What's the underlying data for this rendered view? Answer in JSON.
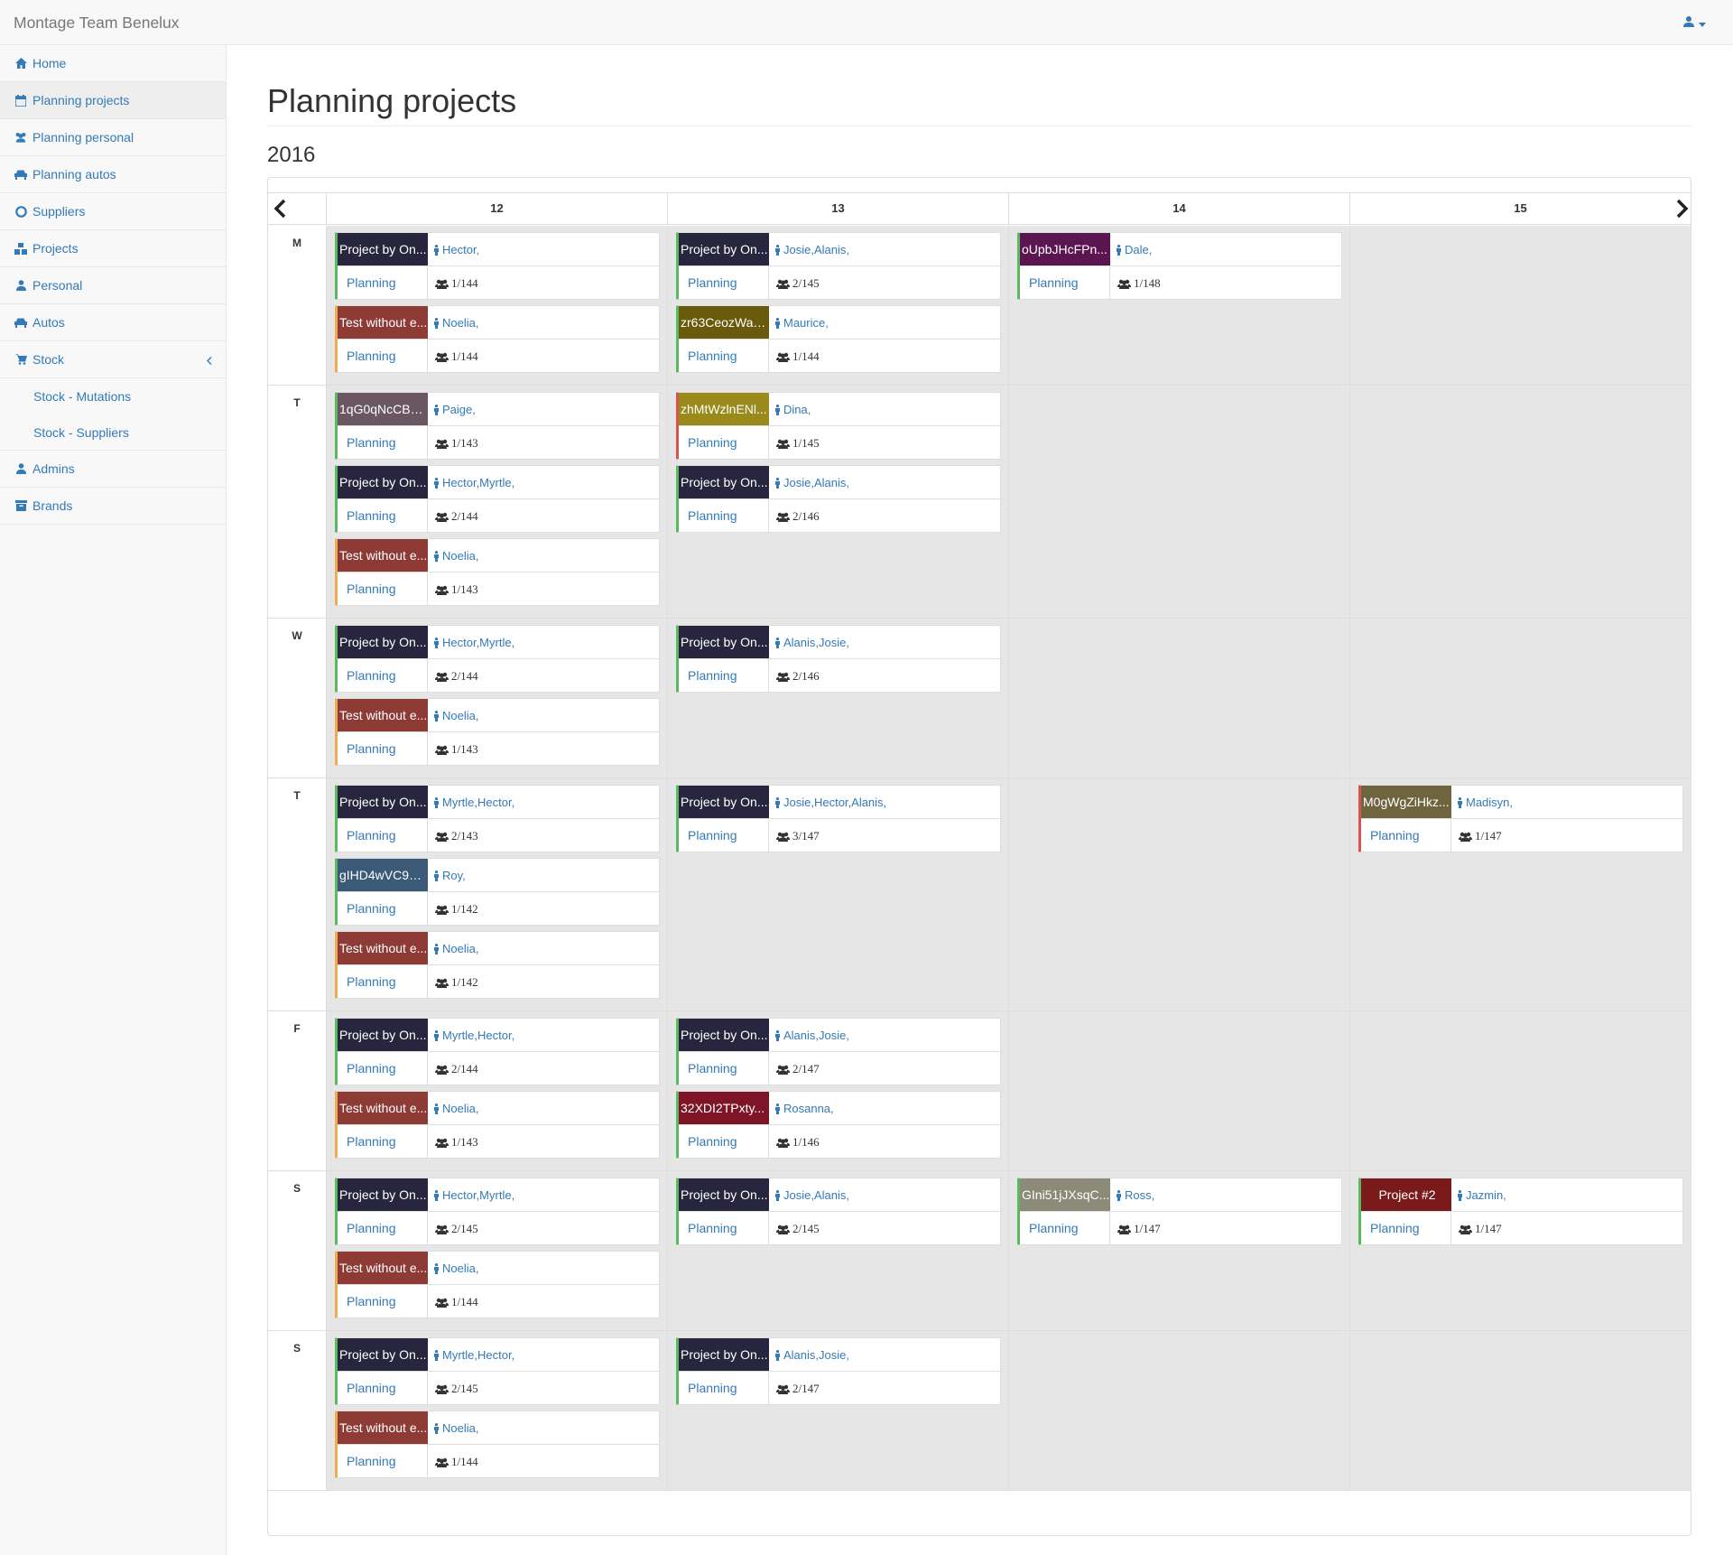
{
  "app": {
    "brand": "Montage Team Benelux"
  },
  "sidebar": {
    "items": [
      {
        "label": "Home",
        "icon": "home-icon"
      },
      {
        "label": "Planning projects",
        "icon": "calendar-icon",
        "active": true
      },
      {
        "label": "Planning personal",
        "icon": "users-icon"
      },
      {
        "label": "Planning autos",
        "icon": "car-icon"
      },
      {
        "label": "Suppliers",
        "icon": "life-ring-icon"
      },
      {
        "label": "Projects",
        "icon": "cubes-icon"
      },
      {
        "label": "Personal",
        "icon": "user-icon"
      },
      {
        "label": "Autos",
        "icon": "car-icon"
      },
      {
        "label": "Stock",
        "icon": "cart-icon",
        "expanded": true
      },
      {
        "label": "Admins",
        "icon": "user-icon"
      },
      {
        "label": "Brands",
        "icon": "archive-icon"
      }
    ],
    "stock_sub": [
      "Stock - Mutations",
      "Stock - Suppliers"
    ]
  },
  "main": {
    "title": "Planning projects",
    "year": "2016"
  },
  "calendar": {
    "weeks": [
      "12",
      "13",
      "14",
      "15"
    ],
    "days": [
      {
        "label": "M",
        "weeks": [
          [
            {
              "name": "Project by On...",
              "color": "#28263f",
              "bar": "#5cb85c",
              "people": "Hector,",
              "count": "1/144"
            },
            {
              "name": "Test without e...",
              "color": "#8e3b35",
              "bar": "#f0ad4e",
              "people": "Noelia,",
              "count": "1/144"
            }
          ],
          [
            {
              "name": "Project by On...",
              "color": "#28263f",
              "bar": "#5cb85c",
              "people": "Josie,Alanis,",
              "count": "2/145"
            },
            {
              "name": "zr63CeozWaJ...",
              "color": "#6a5a0c",
              "bar": "#5cb85c",
              "people": "Maurice,",
              "count": "1/144"
            }
          ],
          [
            {
              "name": "oUpbJHcFPn...",
              "color": "#5b1550",
              "bar": "#5cb85c",
              "people": "Dale,",
              "count": "1/148"
            }
          ],
          []
        ]
      },
      {
        "label": "T",
        "weeks": [
          [
            {
              "name": "1qG0qNcCBa...",
              "color": "#6b5762",
              "bar": "#5cb85c",
              "people": "Paige,",
              "count": "1/143"
            },
            {
              "name": "Project by On...",
              "color": "#28263f",
              "bar": "#5cb85c",
              "people": "Hector,Myrtle,",
              "count": "2/144"
            },
            {
              "name": "Test without e...",
              "color": "#8e3b35",
              "bar": "#f0ad4e",
              "people": "Noelia,",
              "count": "1/143"
            }
          ],
          [
            {
              "name": "zhMtWzlnENl...",
              "color": "#9a8a1c",
              "bar": "#d9534f",
              "people": "Dina,",
              "count": "1/145"
            },
            {
              "name": "Project by On...",
              "color": "#28263f",
              "bar": "#5cb85c",
              "people": "Josie,Alanis,",
              "count": "2/146"
            }
          ],
          [],
          []
        ]
      },
      {
        "label": "W",
        "weeks": [
          [
            {
              "name": "Project by On...",
              "color": "#28263f",
              "bar": "#5cb85c",
              "people": "Hector,Myrtle,",
              "count": "2/144"
            },
            {
              "name": "Test without e...",
              "color": "#8e3b35",
              "bar": "#f0ad4e",
              "people": "Noelia,",
              "count": "1/143"
            }
          ],
          [
            {
              "name": "Project by On...",
              "color": "#28263f",
              "bar": "#5cb85c",
              "people": "Alanis,Josie,",
              "count": "2/146"
            }
          ],
          [],
          []
        ]
      },
      {
        "label": "T",
        "weeks": [
          [
            {
              "name": "Project by On...",
              "color": "#28263f",
              "bar": "#5cb85c",
              "people": "Myrtle,Hector,",
              "count": "2/143"
            },
            {
              "name": "gIHD4wVC9G...",
              "color": "#3a5a78",
              "bar": "#5cb85c",
              "people": "Roy,",
              "count": "1/142"
            },
            {
              "name": "Test without e...",
              "color": "#8e3b35",
              "bar": "#f0ad4e",
              "people": "Noelia,",
              "count": "1/142"
            }
          ],
          [
            {
              "name": "Project by On...",
              "color": "#28263f",
              "bar": "#5cb85c",
              "people": "Josie,Hector,Alanis,",
              "count": "3/147"
            }
          ],
          [],
          [
            {
              "name": "M0gWgZiHkz...",
              "color": "#6e6540",
              "bar": "#d9534f",
              "people": "Madisyn,",
              "count": "1/147"
            }
          ]
        ]
      },
      {
        "label": "F",
        "weeks": [
          [
            {
              "name": "Project by On...",
              "color": "#28263f",
              "bar": "#5cb85c",
              "people": "Myrtle,Hector,",
              "count": "2/144"
            },
            {
              "name": "Test without e...",
              "color": "#8e3b35",
              "bar": "#f0ad4e",
              "people": "Noelia,",
              "count": "1/143"
            }
          ],
          [
            {
              "name": "Project by On...",
              "color": "#28263f",
              "bar": "#5cb85c",
              "people": "Alanis,Josie,",
              "count": "2/147"
            },
            {
              "name": "32XDI2TPxty...",
              "color": "#7e1526",
              "bar": "#5cb85c",
              "people": "Rosanna,",
              "count": "1/146"
            }
          ],
          [],
          []
        ]
      },
      {
        "label": "S",
        "weeks": [
          [
            {
              "name": "Project by On...",
              "color": "#28263f",
              "bar": "#5cb85c",
              "people": "Hector,Myrtle,",
              "count": "2/145"
            },
            {
              "name": "Test without e...",
              "color": "#8e3b35",
              "bar": "#f0ad4e",
              "people": "Noelia,",
              "count": "1/144"
            }
          ],
          [
            {
              "name": "Project by On...",
              "color": "#28263f",
              "bar": "#5cb85c",
              "people": "Josie,Alanis,",
              "count": "2/145"
            }
          ],
          [
            {
              "name": "GIni51jJXsqC...",
              "color": "#8c8a78",
              "bar": "#5cb85c",
              "people": "Ross,",
              "count": "1/147"
            }
          ],
          [
            {
              "name": "Project #2",
              "color": "#7b1a1a",
              "bar": "#5cb85c",
              "people": "Jazmin,",
              "count": "1/147",
              "center": true
            }
          ]
        ]
      },
      {
        "label": "S",
        "weeks": [
          [
            {
              "name": "Project by On...",
              "color": "#28263f",
              "bar": "#5cb85c",
              "people": "Myrtle,Hector,",
              "count": "2/145"
            },
            {
              "name": "Test without e...",
              "color": "#8e3b35",
              "bar": "#f0ad4e",
              "people": "Noelia,",
              "count": "1/144"
            }
          ],
          [
            {
              "name": "Project by On...",
              "color": "#28263f",
              "bar": "#5cb85c",
              "people": "Alanis,Josie,",
              "count": "2/147"
            }
          ],
          [],
          []
        ]
      }
    ],
    "card_status_label": "Planning"
  }
}
